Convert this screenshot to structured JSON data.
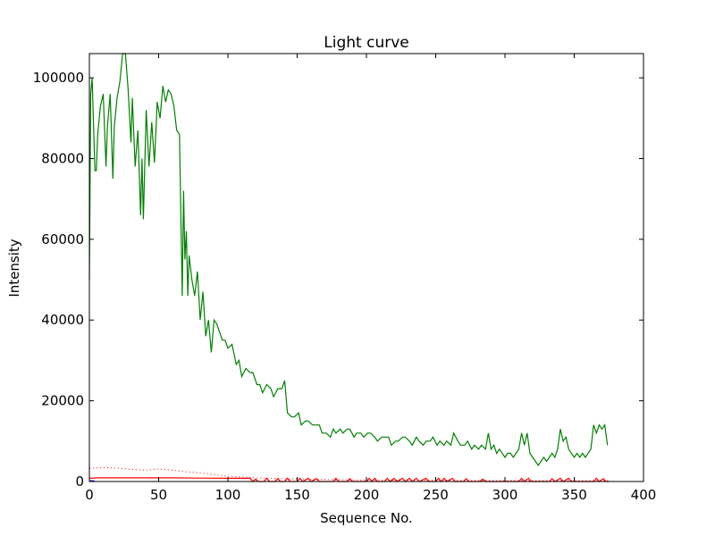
{
  "chart_data": {
    "type": "line",
    "title": "Light curve",
    "xlabel": "Sequence No.",
    "ylabel": "Intensity",
    "xlim": [
      0,
      400
    ],
    "ylim": [
      0,
      106000
    ],
    "x_ticks": [
      0,
      50,
      100,
      150,
      200,
      250,
      300,
      350,
      400
    ],
    "y_ticks": [
      0,
      20000,
      40000,
      60000,
      80000,
      100000
    ],
    "grid": false,
    "legend": "none",
    "series": [
      {
        "color": "#008000",
        "style": "solid",
        "points": [
          [
            0,
            50000
          ],
          [
            1,
            96000
          ],
          [
            2,
            100000
          ],
          [
            3,
            88000
          ],
          [
            4,
            77000
          ],
          [
            5,
            77000
          ],
          [
            6,
            86000
          ],
          [
            8,
            93000
          ],
          [
            10,
            96000
          ],
          [
            12,
            78000
          ],
          [
            13,
            88000
          ],
          [
            15,
            96000
          ],
          [
            17,
            75000
          ],
          [
            18,
            88000
          ],
          [
            20,
            95000
          ],
          [
            22,
            99000
          ],
          [
            24,
            106000
          ],
          [
            26,
            106000
          ],
          [
            28,
            97000
          ],
          [
            30,
            84000
          ],
          [
            31,
            95000
          ],
          [
            33,
            78000
          ],
          [
            35,
            87000
          ],
          [
            37,
            66000
          ],
          [
            38,
            80000
          ],
          [
            39,
            65000
          ],
          [
            41,
            92000
          ],
          [
            43,
            78000
          ],
          [
            45,
            89000
          ],
          [
            47,
            79000
          ],
          [
            49,
            94000
          ],
          [
            51,
            90000
          ],
          [
            53,
            98000
          ],
          [
            55,
            94000
          ],
          [
            57,
            97000
          ],
          [
            59,
            96000
          ],
          [
            61,
            93000
          ],
          [
            63,
            87000
          ],
          [
            65,
            86000
          ],
          [
            67,
            46000
          ],
          [
            68,
            72000
          ],
          [
            69,
            55000
          ],
          [
            70,
            62000
          ],
          [
            71,
            46000
          ],
          [
            72,
            56000
          ],
          [
            74,
            50000
          ],
          [
            76,
            46000
          ],
          [
            78,
            52000
          ],
          [
            80,
            40000
          ],
          [
            82,
            47000
          ],
          [
            84,
            36000
          ],
          [
            86,
            40000
          ],
          [
            88,
            32000
          ],
          [
            90,
            40000
          ],
          [
            92,
            39000
          ],
          [
            94,
            37000
          ],
          [
            96,
            35000
          ],
          [
            98,
            35000
          ],
          [
            100,
            33000
          ],
          [
            103,
            34000
          ],
          [
            106,
            29000
          ],
          [
            108,
            30000
          ],
          [
            110,
            26000
          ],
          [
            113,
            28000
          ],
          [
            116,
            27000
          ],
          [
            118,
            27000
          ],
          [
            121,
            24000
          ],
          [
            123,
            24000
          ],
          [
            125,
            22000
          ],
          [
            128,
            24000
          ],
          [
            131,
            23000
          ],
          [
            133,
            21000
          ],
          [
            136,
            23000
          ],
          [
            139,
            23000
          ],
          [
            141,
            25000
          ],
          [
            143,
            17000
          ],
          [
            146,
            16000
          ],
          [
            148,
            16000
          ],
          [
            151,
            17000
          ],
          [
            153,
            14000
          ],
          [
            156,
            15000
          ],
          [
            158,
            15000
          ],
          [
            161,
            14000
          ],
          [
            163,
            14000
          ],
          [
            166,
            14000
          ],
          [
            168,
            12000
          ],
          [
            171,
            12000
          ],
          [
            174,
            11000
          ],
          [
            176,
            13000
          ],
          [
            178,
            12000
          ],
          [
            181,
            13000
          ],
          [
            183,
            12000
          ],
          [
            186,
            13000
          ],
          [
            188,
            13000
          ],
          [
            191,
            11000
          ],
          [
            193,
            12000
          ],
          [
            196,
            12000
          ],
          [
            198,
            11000
          ],
          [
            201,
            12000
          ],
          [
            203,
            12000
          ],
          [
            206,
            11000
          ],
          [
            208,
            10000
          ],
          [
            211,
            11000
          ],
          [
            213,
            11000
          ],
          [
            216,
            11000
          ],
          [
            218,
            9000
          ],
          [
            221,
            10000
          ],
          [
            223,
            10000
          ],
          [
            226,
            11000
          ],
          [
            228,
            11000
          ],
          [
            231,
            10000
          ],
          [
            233,
            9000
          ],
          [
            236,
            11000
          ],
          [
            238,
            10000
          ],
          [
            241,
            9000
          ],
          [
            243,
            10000
          ],
          [
            246,
            10000
          ],
          [
            248,
            11000
          ],
          [
            251,
            9000
          ],
          [
            253,
            10000
          ],
          [
            256,
            9000
          ],
          [
            258,
            10000
          ],
          [
            261,
            9000
          ],
          [
            263,
            12000
          ],
          [
            266,
            10000
          ],
          [
            268,
            9000
          ],
          [
            271,
            9000
          ],
          [
            273,
            10000
          ],
          [
            276,
            8000
          ],
          [
            278,
            9000
          ],
          [
            281,
            8000
          ],
          [
            283,
            9000
          ],
          [
            286,
            8000
          ],
          [
            288,
            12000
          ],
          [
            290,
            8000
          ],
          [
            292,
            9000
          ],
          [
            294,
            7000
          ],
          [
            296,
            8000
          ],
          [
            298,
            7000
          ],
          [
            300,
            6000
          ],
          [
            302,
            7000
          ],
          [
            304,
            7000
          ],
          [
            306,
            6000
          ],
          [
            308,
            7000
          ],
          [
            310,
            8000
          ],
          [
            312,
            12000
          ],
          [
            314,
            9000
          ],
          [
            316,
            12000
          ],
          [
            318,
            7000
          ],
          [
            320,
            6000
          ],
          [
            322,
            5000
          ],
          [
            324,
            4000
          ],
          [
            326,
            5000
          ],
          [
            328,
            6000
          ],
          [
            330,
            5000
          ],
          [
            332,
            6000
          ],
          [
            334,
            7000
          ],
          [
            336,
            6000
          ],
          [
            338,
            8000
          ],
          [
            340,
            13000
          ],
          [
            342,
            10000
          ],
          [
            344,
            11000
          ],
          [
            346,
            8000
          ],
          [
            348,
            7000
          ],
          [
            350,
            6000
          ],
          [
            352,
            7000
          ],
          [
            354,
            6000
          ],
          [
            356,
            7000
          ],
          [
            358,
            6000
          ],
          [
            360,
            7000
          ],
          [
            362,
            8000
          ],
          [
            364,
            14000
          ],
          [
            366,
            12000
          ],
          [
            368,
            14000
          ],
          [
            370,
            13000
          ],
          [
            372,
            14000
          ],
          [
            374,
            9000
          ]
        ]
      },
      {
        "color": "#ff0000",
        "style": "solid",
        "points": [
          [
            0,
            800
          ],
          [
            5,
            900
          ],
          [
            20,
            900
          ],
          [
            40,
            900
          ],
          [
            60,
            900
          ],
          [
            80,
            850
          ],
          [
            100,
            800
          ],
          [
            116,
            800
          ],
          [
            118,
            0
          ],
          [
            120,
            600
          ],
          [
            122,
            0
          ],
          [
            126,
            0
          ],
          [
            128,
            800
          ],
          [
            130,
            0
          ],
          [
            134,
            0
          ],
          [
            136,
            700
          ],
          [
            138,
            0
          ],
          [
            141,
            0
          ],
          [
            143,
            800
          ],
          [
            145,
            0
          ],
          [
            150,
            0
          ],
          [
            152,
            800
          ],
          [
            154,
            0
          ],
          [
            158,
            800
          ],
          [
            160,
            0
          ],
          [
            164,
            700
          ],
          [
            166,
            0
          ],
          [
            176,
            0
          ],
          [
            178,
            800
          ],
          [
            180,
            0
          ],
          [
            186,
            0
          ],
          [
            188,
            700
          ],
          [
            190,
            0
          ],
          [
            200,
            0
          ],
          [
            202,
            800
          ],
          [
            204,
            0
          ],
          [
            206,
            800
          ],
          [
            208,
            0
          ],
          [
            213,
            0
          ],
          [
            215,
            800
          ],
          [
            217,
            0
          ],
          [
            220,
            800
          ],
          [
            222,
            0
          ],
          [
            226,
            800
          ],
          [
            228,
            0
          ],
          [
            231,
            800
          ],
          [
            233,
            0
          ],
          [
            236,
            800
          ],
          [
            238,
            0
          ],
          [
            243,
            800
          ],
          [
            245,
            0
          ],
          [
            250,
            0
          ],
          [
            252,
            800
          ],
          [
            254,
            0
          ],
          [
            256,
            800
          ],
          [
            258,
            0
          ],
          [
            262,
            800
          ],
          [
            264,
            0
          ],
          [
            270,
            0
          ],
          [
            272,
            700
          ],
          [
            274,
            0
          ],
          [
            282,
            0
          ],
          [
            284,
            600
          ],
          [
            286,
            0
          ],
          [
            310,
            0
          ],
          [
            312,
            800
          ],
          [
            314,
            0
          ],
          [
            317,
            800
          ],
          [
            319,
            0
          ],
          [
            332,
            0
          ],
          [
            334,
            700
          ],
          [
            336,
            0
          ],
          [
            340,
            800
          ],
          [
            342,
            0
          ],
          [
            346,
            800
          ],
          [
            348,
            0
          ],
          [
            364,
            0
          ],
          [
            366,
            800
          ],
          [
            368,
            0
          ],
          [
            371,
            700
          ],
          [
            373,
            0
          ],
          [
            375,
            0
          ]
        ]
      },
      {
        "color": "#ff0000",
        "style": "dotted",
        "points": [
          [
            0,
            3200
          ],
          [
            10,
            3500
          ],
          [
            20,
            3300
          ],
          [
            30,
            3000
          ],
          [
            40,
            2800
          ],
          [
            50,
            3100
          ],
          [
            60,
            2800
          ],
          [
            70,
            2400
          ],
          [
            80,
            2200
          ],
          [
            90,
            1700
          ],
          [
            100,
            1300
          ],
          [
            110,
            1100
          ],
          [
            120,
            900
          ],
          [
            140,
            700
          ],
          [
            160,
            550
          ],
          [
            180,
            450
          ],
          [
            200,
            350
          ],
          [
            250,
            300
          ],
          [
            300,
            250
          ],
          [
            350,
            200
          ],
          [
            375,
            200
          ]
        ]
      },
      {
        "color": "#0000ff",
        "style": "solid",
        "points": [
          [
            0,
            0
          ],
          [
            1,
            200
          ],
          [
            3,
            150
          ],
          [
            4,
            0
          ]
        ]
      }
    ]
  }
}
